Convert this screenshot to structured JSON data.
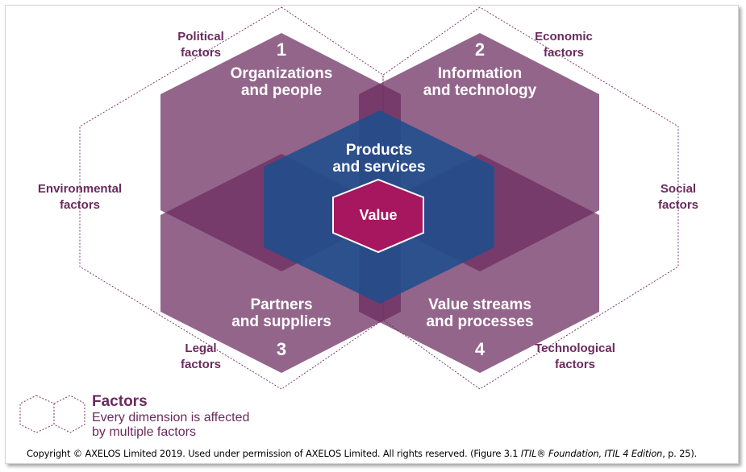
{
  "colors": {
    "dimension_fill": "#6b2a5e",
    "overlap_fill": "#5a1f4d",
    "center_fill": "#1f4e8c",
    "value_fill": "#a6175f",
    "factor_text": "#6b2a5e",
    "dotted_outline": "#7a3a6e"
  },
  "factors": {
    "political": [
      "Political",
      "factors"
    ],
    "economic": [
      "Economic",
      "factors"
    ],
    "environmental": [
      "Environmental",
      "factors"
    ],
    "social": [
      "Social",
      "factors"
    ],
    "legal": [
      "Legal",
      "factors"
    ],
    "technological": [
      "Technological",
      "factors"
    ]
  },
  "dimensions": [
    {
      "number": "1",
      "lines": [
        "Organizations",
        "and people"
      ]
    },
    {
      "number": "2",
      "lines": [
        "Information",
        "and technology"
      ]
    },
    {
      "number": "3",
      "lines": [
        "Partners",
        "and suppliers"
      ]
    },
    {
      "number": "4",
      "lines": [
        "Value streams",
        "and processes"
      ]
    }
  ],
  "center": {
    "lines": [
      "Products",
      "and services"
    ]
  },
  "value": "Value",
  "legend": {
    "title": "Factors",
    "description_lines": [
      "Every dimension is affected",
      "by multiple factors"
    ]
  },
  "copyright": {
    "before": "Copyright © AXELOS Limited 2019. Used under permission of AXELOS Limited. All rights reserved. (Figure 3.1 ",
    "italic": "ITIL® Foundation, ITIL 4 Edition",
    "after": ", p. 25)."
  }
}
